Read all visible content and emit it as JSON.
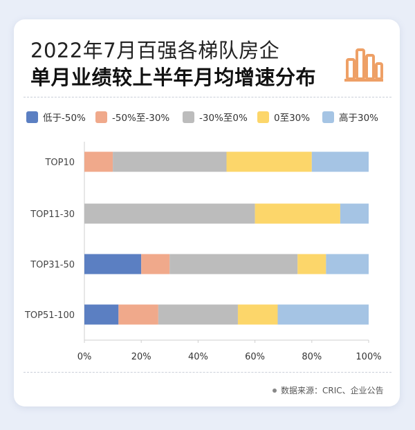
{
  "header": {
    "title_line1": "2022年7月百强各梯队房企",
    "title_line2": "单月业绩较上半年月均增速分布"
  },
  "source": "数据来源：CRIC、企业公告",
  "logo_icon": "bar-chart-icon",
  "colors": {
    "accent": "#eea066",
    "lt_neg50": "#5b7fc2",
    "neg50_neg30": "#f0a98b",
    "neg30_0": "#bcbcbc",
    "p0_30": "#fcd66a",
    "gt30": "#a5c4e4"
  },
  "chart_data": {
    "type": "bar",
    "orientation": "horizontal",
    "stacked": true,
    "categories": [
      "TOP10",
      "TOP11-30",
      "TOP31-50",
      "TOP51-100"
    ],
    "series": [
      {
        "name": "低于-50%",
        "color": "#5b7fc2",
        "values": [
          0,
          0,
          20,
          12
        ]
      },
      {
        "name": "-50%至-30%",
        "color": "#f0a98b",
        "values": [
          10,
          0,
          10,
          14
        ]
      },
      {
        "name": "-30%至0%",
        "color": "#bcbcbc",
        "values": [
          40,
          60,
          45,
          28
        ]
      },
      {
        "name": "0至30%",
        "color": "#fcd66a",
        "values": [
          30,
          30,
          10,
          14
        ]
      },
      {
        "name": "高于30%",
        "color": "#a5c4e4",
        "values": [
          20,
          10,
          15,
          32
        ]
      }
    ],
    "xlim": [
      0,
      100
    ],
    "x_ticks": [
      "0%",
      "20%",
      "40%",
      "60%",
      "80%",
      "100%"
    ],
    "legend_position": "top",
    "grid": false
  }
}
